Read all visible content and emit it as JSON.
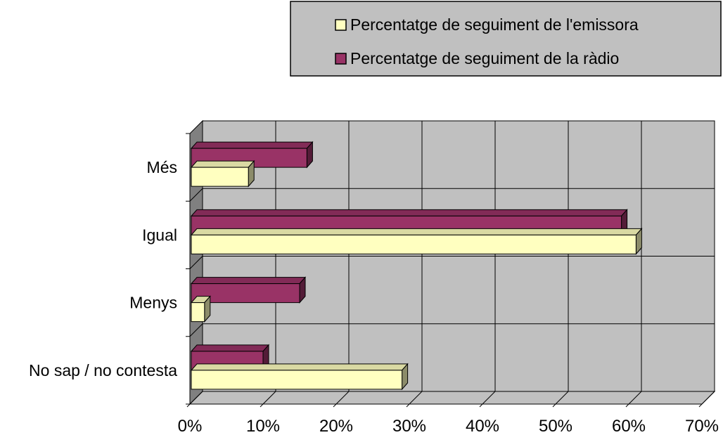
{
  "colors": {
    "series_emissora": "#ffffc0",
    "series_radio": "#993366",
    "plot_wall": "#c0c0c0",
    "side_wall": "#808080",
    "legend_bg": "#c0c0c0",
    "grid": "#000000"
  },
  "chart_data": {
    "type": "bar",
    "orientation": "horizontal",
    "style": "3d-clustered",
    "categories": [
      "Més",
      "Igual",
      "Menys",
      "No sap / no contesta"
    ],
    "series": [
      {
        "name": "Percentatge de seguiment de l'emissora",
        "values": [
          8,
          61,
          2,
          29
        ]
      },
      {
        "name": "Percentatge de seguiment de la ràdio",
        "values": [
          16,
          59,
          15,
          10
        ]
      }
    ],
    "xlim": [
      0,
      70
    ],
    "xticks": [
      "0%",
      "10%",
      "20%",
      "30%",
      "40%",
      "50%",
      "60%",
      "70%"
    ],
    "grid": true,
    "legend_position": "top-right",
    "title": "",
    "xlabel": "",
    "ylabel": ""
  }
}
